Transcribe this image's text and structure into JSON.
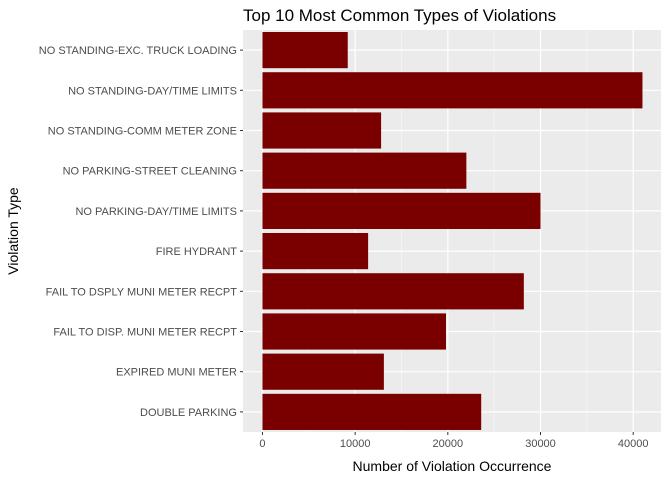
{
  "chart_data": {
    "type": "bar",
    "orientation": "horizontal",
    "title": "Top 10 Most Common Types of Violations",
    "xlabel": "Number of Violation Occurrence",
    "ylabel": "Violation Type",
    "categories": [
      "NO STANDING-EXC. TRUCK LOADING",
      "NO STANDING-DAY/TIME LIMITS",
      "NO STANDING-COMM METER ZONE",
      "NO PARKING-STREET CLEANING",
      "NO PARKING-DAY/TIME LIMITS",
      "FIRE HYDRANT",
      "FAIL TO DSPLY MUNI METER RECPT",
      "FAIL TO DISP. MUNI METER RECPT",
      "EXPIRED MUNI METER",
      "DOUBLE PARKING"
    ],
    "values": [
      9200,
      41000,
      12800,
      22000,
      30000,
      11400,
      28200,
      19800,
      13100,
      23600
    ],
    "xlim": [
      -2100,
      43000
    ],
    "xticks": [
      0,
      10000,
      20000,
      30000,
      40000
    ],
    "xtick_labels": [
      "0",
      "10000",
      "20000",
      "30000",
      "40000"
    ],
    "grid": true,
    "colors": {
      "bar": "#7a0000",
      "panel": "#ebebeb",
      "grid_major": "#ffffff",
      "grid_minor": "#f5f5f5"
    }
  }
}
